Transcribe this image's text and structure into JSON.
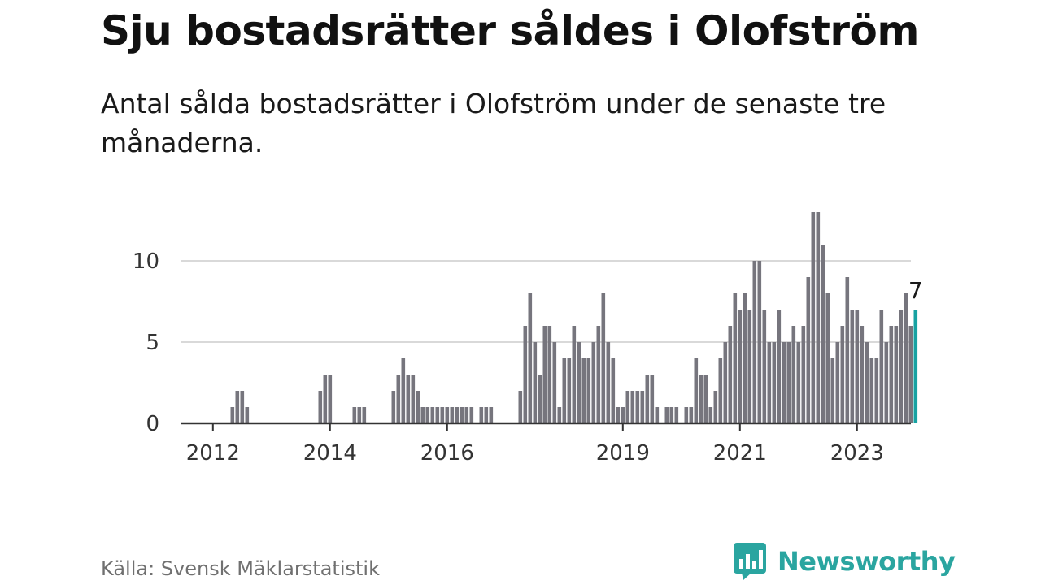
{
  "title": "Sju bostadsrätter såldes i Olofström",
  "subtitle": "Antal sålda bostadsrätter i Olofström under de senaste tre månaderna.",
  "source": "Källa: Svensk Mäklarstatistik",
  "brand": {
    "name": "Newsworthy",
    "icon": "bar-chart-speech-bubble-icon",
    "color": "#2aa5a0"
  },
  "chart_data": {
    "type": "bar",
    "title": "Sju bostadsrätter såldes i Olofström",
    "subtitle": "Antal sålda bostadsrätter i Olofström under de senaste tre månaderna.",
    "xlabel": "",
    "ylabel": "",
    "ylim": [
      0,
      13
    ],
    "yticks": [
      0,
      5,
      10
    ],
    "xticks": [
      "2012",
      "2014",
      "2016",
      "2019",
      "2021",
      "2023"
    ],
    "grid": true,
    "bar_color": "#76757d",
    "highlight_color": "#17a2a2",
    "last_value_label": "7",
    "series": [
      {
        "values": [
          0,
          0,
          0,
          0,
          0,
          0,
          0,
          0,
          0,
          1,
          2,
          2,
          1,
          0,
          0,
          0,
          0,
          0,
          0,
          0,
          0,
          0,
          0,
          0,
          0,
          0,
          0,
          2,
          3,
          3,
          0,
          0,
          0,
          0,
          1,
          1,
          1,
          0,
          0,
          0,
          0,
          0,
          2,
          3,
          4,
          3,
          3,
          2,
          1,
          1,
          1,
          1,
          1,
          1,
          1,
          1,
          1,
          1,
          1,
          0,
          1,
          1,
          1,
          0,
          0,
          0,
          0,
          0,
          2,
          6,
          8,
          5,
          3,
          6,
          6,
          5,
          1,
          4,
          4,
          6,
          5,
          4,
          4,
          5,
          6,
          8,
          5,
          4,
          1,
          1,
          2,
          2,
          2,
          2,
          3,
          3,
          1,
          0,
          1,
          1,
          1,
          0,
          1,
          1,
          4,
          3,
          3,
          1,
          2,
          4,
          5,
          6,
          8,
          7,
          8,
          7,
          10,
          10,
          7,
          5,
          5,
          7,
          5,
          5,
          6,
          5,
          6,
          9,
          13,
          13,
          11,
          8,
          4,
          5,
          6,
          9,
          7,
          7,
          6,
          5,
          4,
          4,
          7,
          5,
          6,
          6,
          7,
          8,
          6,
          7
        ]
      }
    ]
  }
}
